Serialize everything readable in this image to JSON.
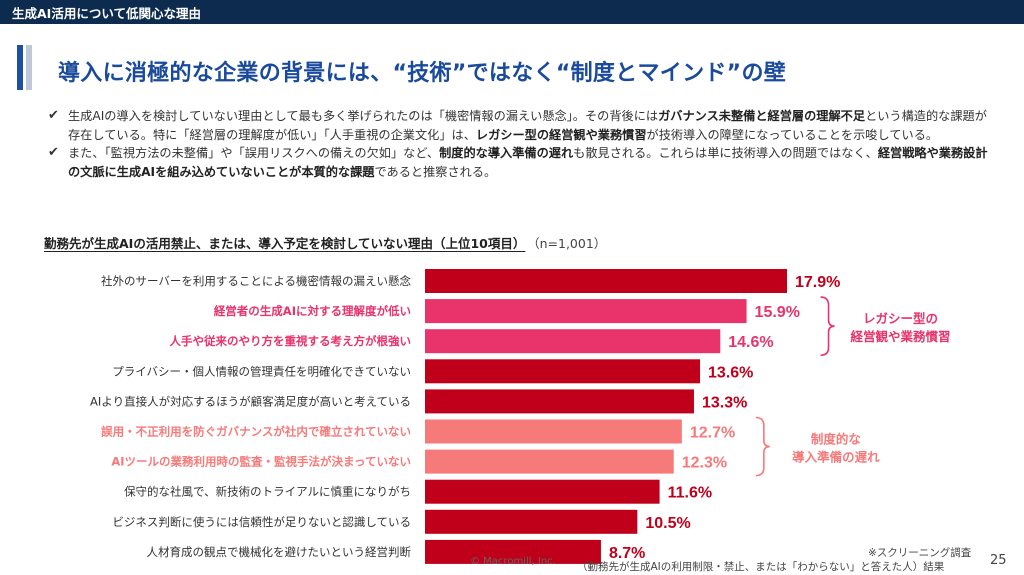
{
  "header": {
    "section_title": "生成AI活用について低関心な理由"
  },
  "heading": "導入に消極的な企業の背景には、“技術”ではなく“制度とマインド”の壁",
  "bullets": [
    {
      "segments": [
        {
          "text": "生成AIの導入を検討していない理由として最も多く挙げられたのは「機密情報の漏えい懸念」。その背後には",
          "bold": false
        },
        {
          "text": "ガバナンス未整備と経営層の理解不足",
          "bold": true
        },
        {
          "text": "という構造的な課題が存在している。特に「経営層の理解度が低い」「人手重視の企業文化」は、",
          "bold": false
        },
        {
          "text": "レガシー型の経営観や業務慣習",
          "bold": true
        },
        {
          "text": "が技術導入の障壁になっていることを示唆している。",
          "bold": false
        }
      ]
    },
    {
      "segments": [
        {
          "text": "また、「監視方法の未整備」や「誤用リスクへの備えの欠如」など、",
          "bold": false
        },
        {
          "text": "制度的な導入準備の遅れ",
          "bold": true
        },
        {
          "text": "も散見される。これらは単に技術導入の問題ではなく、",
          "bold": false
        },
        {
          "text": "経営戦略や業務設計の文脈に生成AIを組み込めていないことが本質的な課題",
          "bold": true
        },
        {
          "text": "であると推察される。",
          "bold": false
        }
      ]
    }
  ],
  "chart_title": "勤務先が生成AIの活用禁止、または、導入予定を検討していない理由（上位10項目）",
  "chart_n": "（n=1,001）",
  "chart_data": {
    "type": "bar",
    "orientation": "horizontal",
    "unit": "%",
    "xlim": [
      0,
      17.9
    ],
    "categories": [
      "社外のサーバーを利用することによる機密情報の漏えい懸念",
      "経営者の生成AIに対する理解度が低い",
      "人手や従来のやり方を重視する考え方が根強い",
      "プライバシー・個人情報の管理責任を明確化できていない",
      "AIより直接人が対応するほうが顧客満足度が高いと考えている",
      "誤用・不正利用を防ぐガバナンスが社内で確立されていない",
      "AIツールの業務利用時の監査・監視手法が決まっていない",
      "保守的な社風で、新技術のトライアルに慎重になりがち",
      "ビジネス判断に使うには信頼性が足りないと認識している",
      "人材育成の観点で機械化を避けたいという経営判断"
    ],
    "values": [
      17.9,
      15.9,
      14.6,
      13.6,
      13.3,
      12.7,
      12.3,
      11.6,
      10.5,
      8.7
    ],
    "value_labels": [
      "17.9%",
      "15.9%",
      "14.6%",
      "13.6%",
      "13.3%",
      "12.7%",
      "12.3%",
      "11.6%",
      "10.5%",
      "8.7%"
    ],
    "groups": [
      {
        "label_lines": [
          "レガシー型の",
          "経営観や業務慣習"
        ],
        "indices": [
          1,
          2
        ],
        "color": "#e8336b"
      },
      {
        "label_lines": [
          "制度的な",
          "導入準備の遅れ"
        ],
        "indices": [
          5,
          6
        ],
        "color": "#f77a7a"
      }
    ],
    "default_color": "#c0001a",
    "default_label_color": "#333333"
  },
  "footer": {
    "copyright": "© Macromill, Inc.",
    "note_line1": "※スクリーニング調査",
    "note_line2": "（勤務先が生成AIの利用制限・禁止、または「わからない」と答えた人）結果",
    "page_number": "25"
  }
}
